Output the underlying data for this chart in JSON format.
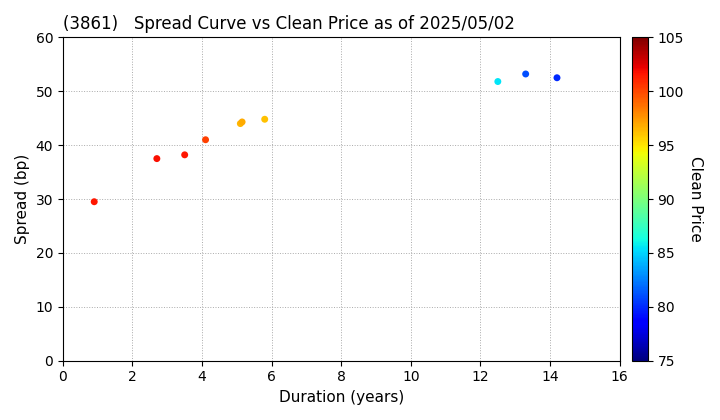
{
  "title": "(3861)   Spread Curve vs Clean Price as of 2025/05/02",
  "xlabel": "Duration (years)",
  "ylabel": "Spread (bp)",
  "colorbar_label": "Clean Price",
  "xlim": [
    0,
    16
  ],
  "ylim": [
    0,
    60
  ],
  "xticks": [
    0,
    2,
    4,
    6,
    8,
    10,
    12,
    14,
    16
  ],
  "yticks": [
    0,
    10,
    20,
    30,
    40,
    50,
    60
  ],
  "colorbar_min": 75,
  "colorbar_max": 105,
  "colorbar_ticks": [
    75,
    80,
    85,
    90,
    95,
    100,
    105
  ],
  "points": [
    {
      "duration": 0.9,
      "spread": 29.5,
      "price": 101.5
    },
    {
      "duration": 2.7,
      "spread": 37.5,
      "price": 101.8
    },
    {
      "duration": 3.5,
      "spread": 38.2,
      "price": 101.6
    },
    {
      "duration": 4.1,
      "spread": 41.0,
      "price": 100.2
    },
    {
      "duration": 5.1,
      "spread": 44.0,
      "price": 96.5
    },
    {
      "duration": 5.15,
      "spread": 44.3,
      "price": 96.8
    },
    {
      "duration": 5.8,
      "spread": 44.8,
      "price": 96.2
    },
    {
      "duration": 12.5,
      "spread": 51.8,
      "price": 85.5
    },
    {
      "duration": 13.3,
      "spread": 53.2,
      "price": 81.0
    },
    {
      "duration": 14.2,
      "spread": 52.5,
      "price": 80.0
    }
  ],
  "background_color": "#ffffff",
  "title_fontsize": 12,
  "axis_label_fontsize": 11,
  "tick_fontsize": 10,
  "colorbar_label_fontsize": 11,
  "colorbar_tick_fontsize": 10,
  "marker_size": 25
}
